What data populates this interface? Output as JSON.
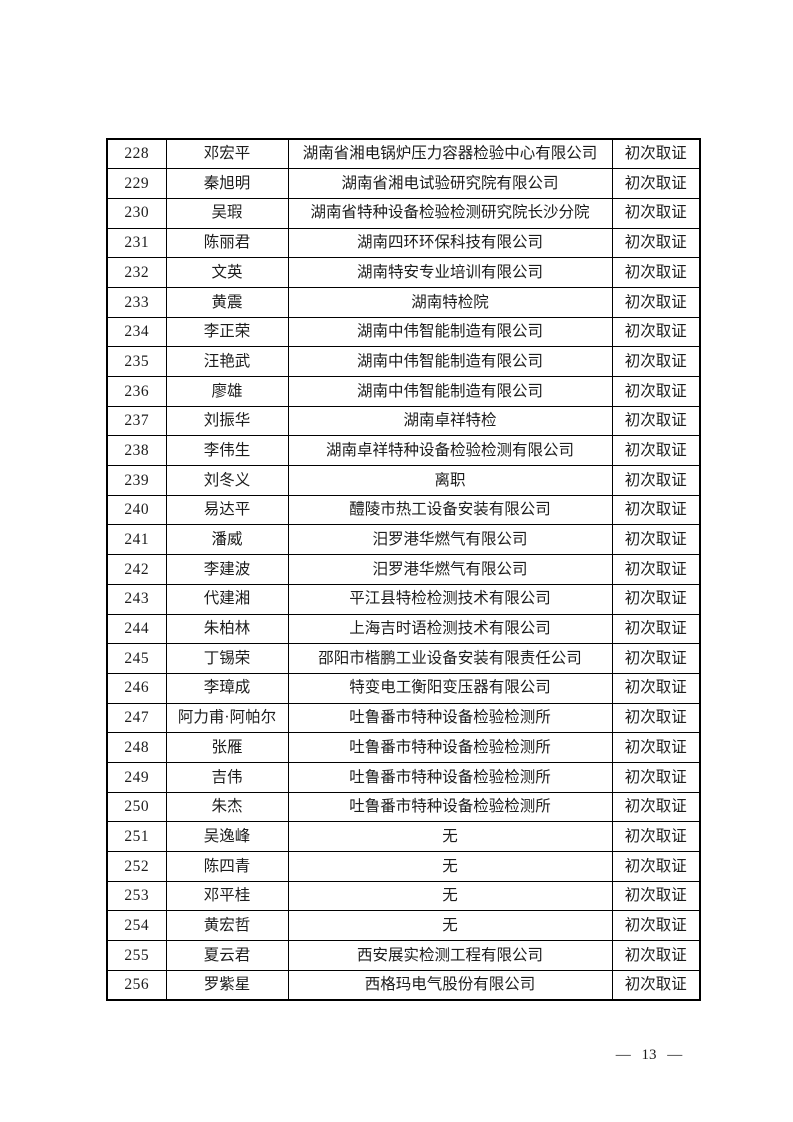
{
  "footer": {
    "page_label": "— 13 —"
  },
  "table": {
    "rows": [
      {
        "no": "228",
        "name": "邓宏平",
        "org": "湖南省湘电锅炉压力容器检验中心有限公司",
        "status": "初次取证"
      },
      {
        "no": "229",
        "name": "秦旭明",
        "org": "湖南省湘电试验研究院有限公司",
        "status": "初次取证"
      },
      {
        "no": "230",
        "name": "吴瑕",
        "org": "湖南省特种设备检验检测研究院长沙分院",
        "status": "初次取证"
      },
      {
        "no": "231",
        "name": "陈丽君",
        "org": "湖南四环环保科技有限公司",
        "status": "初次取证"
      },
      {
        "no": "232",
        "name": "文英",
        "org": "湖南特安专业培训有限公司",
        "status": "初次取证"
      },
      {
        "no": "233",
        "name": "黄震",
        "org": "湖南特检院",
        "status": "初次取证"
      },
      {
        "no": "234",
        "name": "李正荣",
        "org": "湖南中伟智能制造有限公司",
        "status": "初次取证"
      },
      {
        "no": "235",
        "name": "汪艳武",
        "org": "湖南中伟智能制造有限公司",
        "status": "初次取证"
      },
      {
        "no": "236",
        "name": "廖雄",
        "org": "湖南中伟智能制造有限公司",
        "status": "初次取证"
      },
      {
        "no": "237",
        "name": "刘振华",
        "org": "湖南卓祥特检",
        "status": "初次取证"
      },
      {
        "no": "238",
        "name": "李伟生",
        "org": "湖南卓祥特种设备检验检测有限公司",
        "status": "初次取证"
      },
      {
        "no": "239",
        "name": "刘冬义",
        "org": "离职",
        "status": "初次取证"
      },
      {
        "no": "240",
        "name": "易达平",
        "org": "醴陵市热工设备安装有限公司",
        "status": "初次取证"
      },
      {
        "no": "241",
        "name": "潘威",
        "org": "汨罗港华燃气有限公司",
        "status": "初次取证"
      },
      {
        "no": "242",
        "name": "李建波",
        "org": "汨罗港华燃气有限公司",
        "status": "初次取证"
      },
      {
        "no": "243",
        "name": "代建湘",
        "org": "平江县特检检测技术有限公司",
        "status": "初次取证"
      },
      {
        "no": "244",
        "name": "朱柏林",
        "org": "上海吉时语检测技术有限公司",
        "status": "初次取证"
      },
      {
        "no": "245",
        "name": "丁锡荣",
        "org": "邵阳市楷鹏工业设备安装有限责任公司",
        "status": "初次取证"
      },
      {
        "no": "246",
        "name": "李璋成",
        "org": "特变电工衡阳变压器有限公司",
        "status": "初次取证"
      },
      {
        "no": "247",
        "name": "阿力甫·阿帕尔",
        "org": "吐鲁番市特种设备检验检测所",
        "status": "初次取证"
      },
      {
        "no": "248",
        "name": "张雁",
        "org": "吐鲁番市特种设备检验检测所",
        "status": "初次取证"
      },
      {
        "no": "249",
        "name": "吉伟",
        "org": "吐鲁番市特种设备检验检测所",
        "status": "初次取证"
      },
      {
        "no": "250",
        "name": "朱杰",
        "org": "吐鲁番市特种设备检验检测所",
        "status": "初次取证"
      },
      {
        "no": "251",
        "name": "吴逸峰",
        "org": "无",
        "status": "初次取证"
      },
      {
        "no": "252",
        "name": "陈四青",
        "org": "无",
        "status": "初次取证"
      },
      {
        "no": "253",
        "name": "邓平桂",
        "org": "无",
        "status": "初次取证"
      },
      {
        "no": "254",
        "name": "黄宏哲",
        "org": "无",
        "status": "初次取证"
      },
      {
        "no": "255",
        "name": "夏云君",
        "org": "西安展实检测工程有限公司",
        "status": "初次取证"
      },
      {
        "no": "256",
        "name": "罗紫星",
        "org": "西格玛电气股份有限公司",
        "status": "初次取证"
      }
    ]
  }
}
